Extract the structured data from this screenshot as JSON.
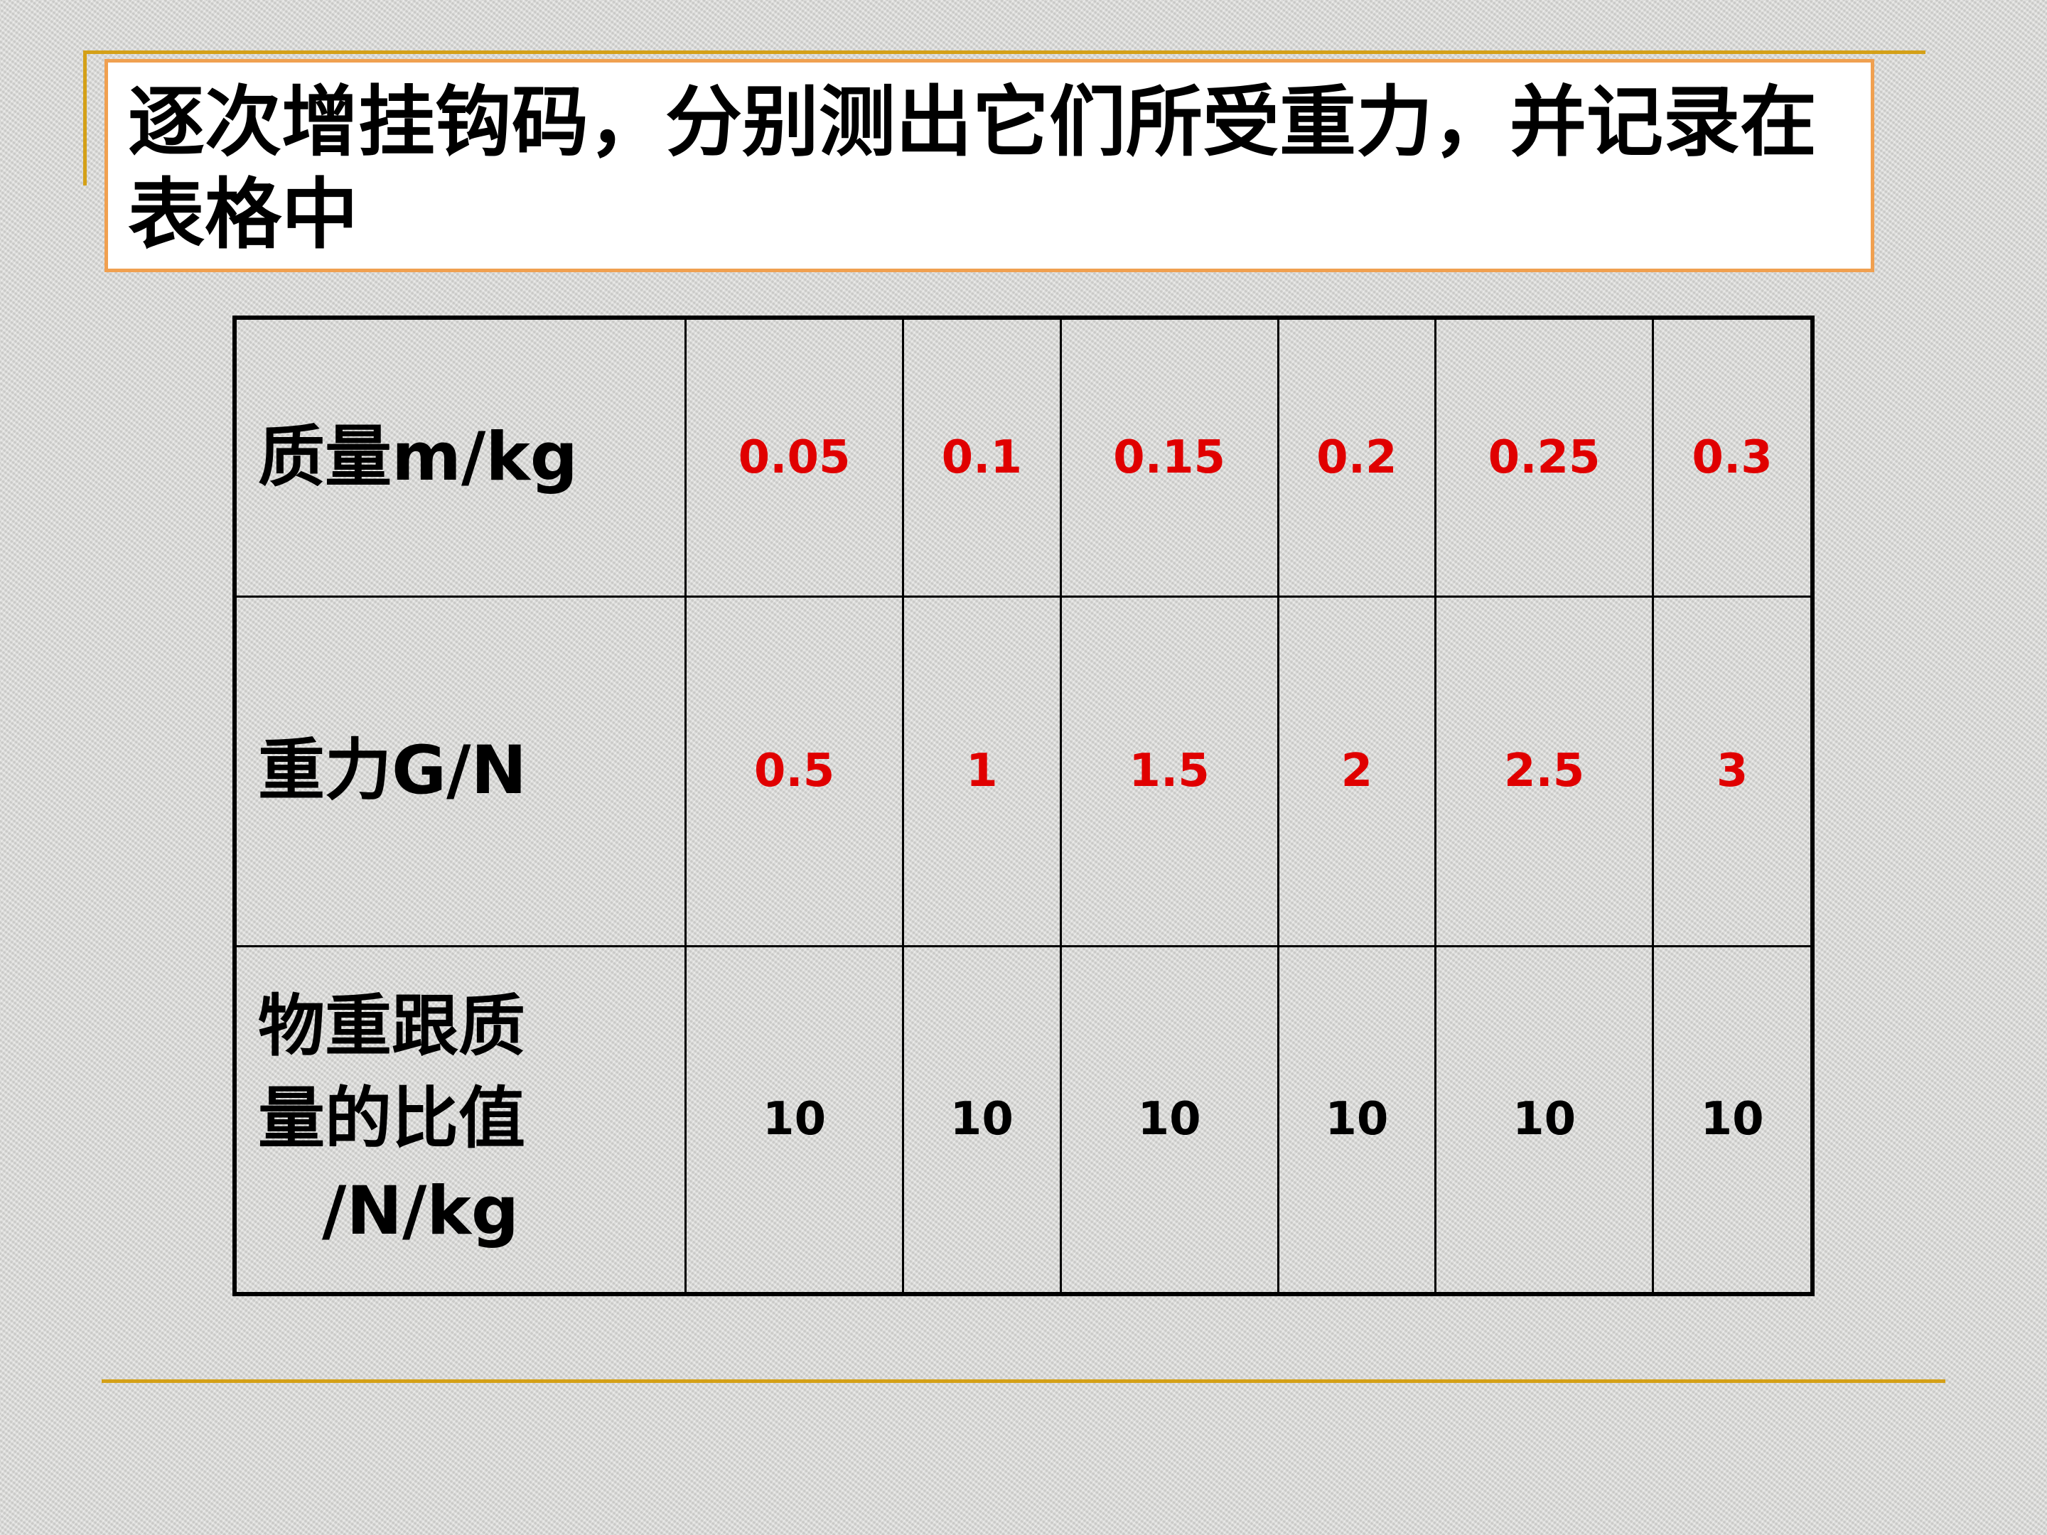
{
  "title": "逐次增挂钩码，分别测出它们所受重力，并记录在表格中",
  "table": {
    "rows": [
      {
        "label": "质量m/kg",
        "values": [
          "0.05",
          "0.1",
          "0.15",
          "0.2",
          "0.25",
          "0.3"
        ],
        "color": "#e00000"
      },
      {
        "label": "重力G/N",
        "values": [
          "0.5",
          "1",
          "1.5",
          "2",
          "2.5",
          "3"
        ],
        "color": "#e00000"
      },
      {
        "label": "物重跟质量的比值",
        "unit": "/N/kg",
        "values": [
          "10",
          "10",
          "10",
          "10",
          "10",
          "10"
        ],
        "color": "#000000"
      }
    ]
  },
  "colors": {
    "accent_line": "#d4a017",
    "title_border": "#f0a050"
  }
}
